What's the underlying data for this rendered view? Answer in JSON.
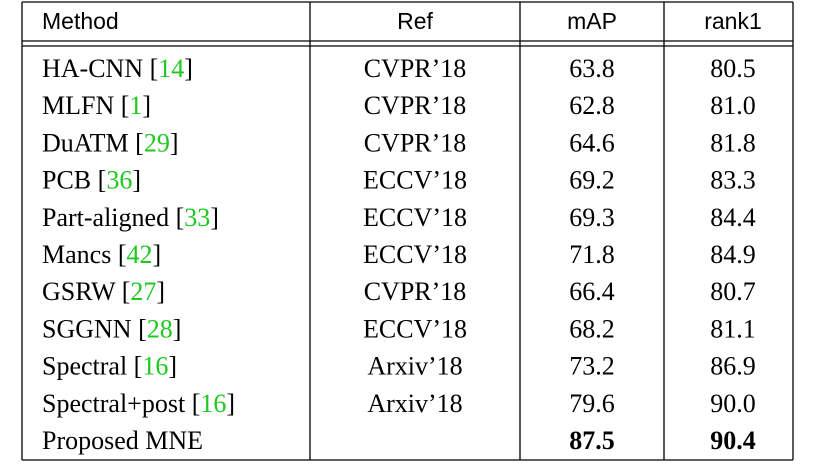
{
  "table": {
    "header": [
      "Method",
      "Ref",
      "mAP",
      "rank1"
    ],
    "rows": [
      {
        "method": [
          "HA-CNN [",
          "14",
          "]"
        ],
        "ref": "CVPR’18",
        "map": "63.8",
        "rank1": "80.5"
      },
      {
        "method": [
          "MLFN [",
          "1",
          "]"
        ],
        "ref": "CVPR’18",
        "map": "62.8",
        "rank1": "81.0"
      },
      {
        "method": [
          "DuATM [",
          "29",
          "]"
        ],
        "ref": "CVPR’18",
        "map": "64.6",
        "rank1": "81.8"
      },
      {
        "method": [
          "PCB [",
          "36",
          "]"
        ],
        "ref": "ECCV’18",
        "map": "69.2",
        "rank1": "83.3"
      },
      {
        "method": [
          "Part-aligned [",
          "33",
          "]"
        ],
        "ref": "ECCV’18",
        "map": "69.3",
        "rank1": "84.4"
      },
      {
        "method": [
          "Mancs [",
          "42",
          "]"
        ],
        "ref": "ECCV’18",
        "map": "71.8",
        "rank1": "84.9"
      },
      {
        "method": [
          "GSRW [",
          "27",
          "]"
        ],
        "ref": "CVPR’18",
        "map": "66.4",
        "rank1": "80.7"
      },
      {
        "method": [
          "SGGNN [",
          "28",
          "]"
        ],
        "ref": "ECCV’18",
        "map": "68.2",
        "rank1": "81.1"
      },
      {
        "method": [
          "Spectral [",
          "16",
          "]"
        ],
        "ref": "Arxiv’18",
        "map": "73.2",
        "rank1": "86.9"
      },
      {
        "method": [
          "Spectral+post [",
          "16",
          "]"
        ],
        "ref": "Arxiv’18",
        "map": "79.6",
        "rank1": "90.0"
      },
      {
        "method": [
          "Proposed MNE"
        ],
        "ref": "",
        "map": "87.5",
        "rank1": "90.4",
        "bold": true
      }
    ]
  }
}
